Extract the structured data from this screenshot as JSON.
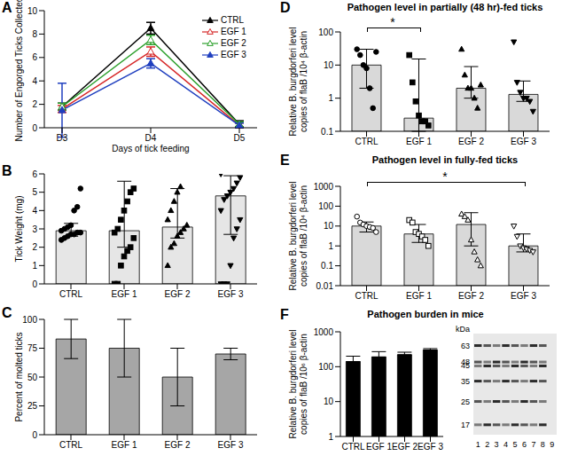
{
  "chart_data": [
    {
      "label": "A",
      "type": "line",
      "categories": [
        "D3",
        "D4",
        "D5"
      ],
      "xlabel": "Days of tick feeding",
      "ylabel": "Number of Engorged Ticks Collected",
      "ylim": [
        0,
        10
      ],
      "yticks": [
        0,
        2,
        4,
        6,
        8,
        10
      ],
      "legend": "top-right",
      "series": [
        {
          "name": "CTRL",
          "color": "#000000",
          "marker": "triangle",
          "values": [
            1.8,
            8.5,
            0.3
          ],
          "errors": [
            0.3,
            0.5,
            0.3
          ]
        },
        {
          "name": "EGF 1",
          "color": "#d62728",
          "marker": "open-triangle",
          "values": [
            1.6,
            6.5,
            0.2
          ],
          "errors": [
            0.3,
            0.4,
            0.2
          ]
        },
        {
          "name": "EGF 2",
          "color": "#2ca02c",
          "marker": "open-triangle",
          "values": [
            1.8,
            7.5,
            0.3
          ],
          "errors": [
            0.3,
            0.4,
            0.2
          ]
        },
        {
          "name": "EGF 3",
          "color": "#1f3fbf",
          "marker": "triangle",
          "values": [
            1.5,
            5.5,
            0.2
          ],
          "errors": [
            2.3,
            0.4,
            0.2
          ]
        }
      ]
    },
    {
      "label": "B",
      "type": "bar",
      "categories": [
        "CTRL",
        "EGF 1",
        "EGF 2",
        "EGF 3"
      ],
      "ylabel": "Tick Weight (mg)",
      "ylim": [
        0,
        6
      ],
      "yticks": [
        0,
        1,
        2,
        3,
        4,
        5,
        6
      ],
      "color": "#e6e6e6",
      "values": [
        2.9,
        2.9,
        3.1,
        4.8
      ],
      "errors": [
        [
          0.3,
          0.4
        ],
        [
          0.9,
          2.7
        ],
        [
          0.6,
          2.1
        ],
        [
          2.1,
          1.1
        ]
      ],
      "points": [
        {
          "marker": "circle",
          "values": [
            2.4,
            2.5,
            2.6,
            2.7,
            2.7,
            2.8,
            2.8,
            2.9,
            3.0,
            3.1,
            3.2,
            4.0,
            4.2,
            5.2
          ]
        },
        {
          "marker": "square",
          "values": [
            0,
            0,
            1.0,
            1.5,
            1.8,
            2.0,
            2.5,
            2.8,
            3.0,
            3.5,
            4.0,
            4.5,
            5.0,
            5.2
          ]
        },
        {
          "marker": "triangle",
          "values": [
            1.0,
            2.0,
            2.2,
            2.6,
            2.8,
            3.0,
            3.2,
            3.5,
            4.0,
            4.5,
            5.0,
            5.3
          ]
        },
        {
          "marker": "triangle-down",
          "values": [
            0,
            0,
            0,
            1.0,
            2.5,
            3.0,
            3.5,
            4.0,
            4.6,
            4.8,
            5.0,
            5.2,
            5.5,
            5.8,
            6.0
          ]
        }
      ]
    },
    {
      "label": "C",
      "type": "bar",
      "categories": [
        "CTRL",
        "EGF 1",
        "EGF 2",
        "EGF 3"
      ],
      "ylabel": "Percent of molted ticks",
      "ylim": [
        0,
        100
      ],
      "yticks": [
        0,
        25,
        50,
        75,
        100
      ],
      "color": "#a6a6a6",
      "values": [
        83,
        75,
        50,
        70
      ],
      "errors": [
        [
          17,
          17
        ],
        [
          25,
          25
        ],
        [
          25,
          25
        ],
        [
          5,
          5
        ]
      ]
    },
    {
      "label": "D",
      "type": "bar",
      "title": "Pathogen level in partially (48 hr)-fed ticks",
      "categories": [
        "CTRL",
        "EGF 1",
        "EGF 2",
        "EGF 3"
      ],
      "ylabel": [
        "Relative B. burgdorferi level",
        "copies of flaB /10⁴ β-actin"
      ],
      "log": "y",
      "ylim": [
        0.1,
        100
      ],
      "yticks": [
        0.1,
        1,
        10,
        100
      ],
      "color": "#d9d9d9",
      "values": [
        10,
        0.25,
        2,
        1.3
      ],
      "errors": [
        [
          8,
          20
        ],
        [
          0.15,
          15
        ],
        [
          1,
          7
        ],
        [
          0.5,
          2
        ]
      ],
      "points": [
        {
          "marker": "circle",
          "values": [
            30,
            20,
            10,
            8,
            2,
            0.5,
            25
          ]
        },
        {
          "marker": "square",
          "values": [
            20,
            3,
            0.8,
            0.3,
            0.2,
            0.2,
            0.15
          ]
        },
        {
          "marker": "triangle",
          "values": [
            30,
            5,
            2,
            2,
            1,
            0.5,
            2.5
          ]
        },
        {
          "marker": "triangle-down",
          "values": [
            50,
            3,
            1.5,
            1,
            1,
            0.8,
            0.4
          ]
        }
      ],
      "annotations": [
        {
          "text": "*",
          "from": "CTRL",
          "to": "EGF 1"
        }
      ]
    },
    {
      "label": "E",
      "type": "bar",
      "title": "Pathogen level in fully-fed ticks",
      "categories": [
        "CTRL",
        "EGF 1",
        "EGF 2",
        "EGF 3"
      ],
      "ylabel": [
        "Relative B. burgdorferi level",
        "copies of flaB /10⁴ β-actin"
      ],
      "log": "y",
      "ylim": [
        0.01,
        1000
      ],
      "yticks": [
        0.01,
        0.1,
        1,
        10,
        100,
        1000
      ],
      "color": "#d9d9d9",
      "values": [
        10,
        4,
        12,
        1
      ],
      "errors": [
        [
          5,
          6
        ],
        [
          2.5,
          8
        ],
        [
          11,
          35
        ],
        [
          0.5,
          3
        ]
      ],
      "points": [
        {
          "marker": "open-circle",
          "values": [
            30,
            15,
            12,
            10,
            9,
            8,
            5
          ]
        },
        {
          "marker": "open-square",
          "values": [
            20,
            15,
            5,
            4,
            3,
            2,
            1
          ]
        },
        {
          "marker": "open-triangle",
          "values": [
            40,
            30,
            20,
            2,
            0.5,
            0.2,
            0.1
          ]
        },
        {
          "marker": "open-triangle-down",
          "values": [
            10,
            3,
            1,
            0.8,
            0.7,
            0.6,
            0.5
          ]
        }
      ],
      "annotations": [
        {
          "text": "*",
          "from": "CTRL",
          "to": "EGF 3"
        }
      ]
    },
    {
      "label": "F",
      "type": "bar",
      "title": "Pathogen burden in mice",
      "categories": [
        "CTRL",
        "EGF 1",
        "EGF 2",
        "EGF 3"
      ],
      "ylabel": [
        "Relative B. burgdorferi level",
        "copies of flaB /10⁶ β-actin"
      ],
      "log": "y",
      "ylim": [
        1,
        1000
      ],
      "yticks": [
        1,
        10,
        100,
        1000
      ],
      "color": "#000000",
      "values": [
        140,
        190,
        220,
        300
      ],
      "errors": [
        [
          0,
          60
        ],
        [
          0,
          80
        ],
        [
          0,
          40
        ],
        [
          0,
          30
        ]
      ],
      "blot": {
        "unit": "kDa",
        "markers": [
          63,
          48,
          45,
          35,
          25,
          17
        ],
        "lanes": [
          1,
          2,
          3,
          4,
          5,
          6,
          7,
          8,
          9
        ]
      }
    }
  ]
}
